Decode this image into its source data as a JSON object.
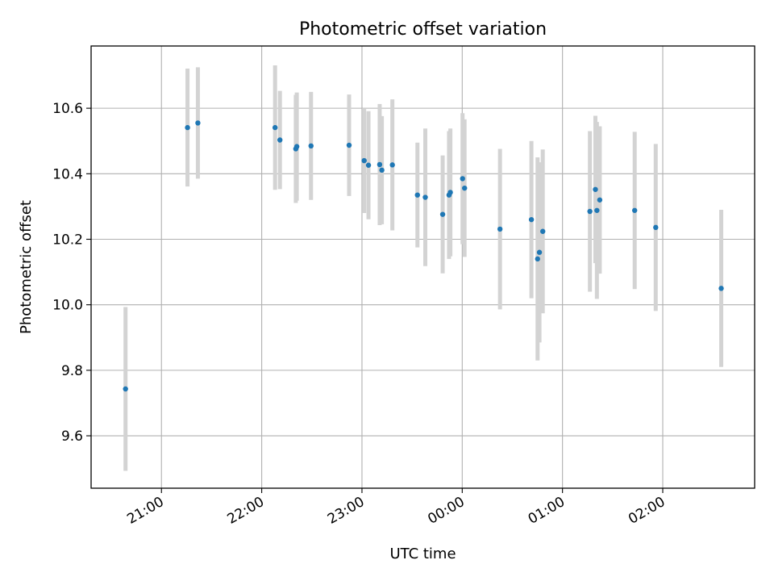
{
  "chart_data": {
    "type": "scatter",
    "title": "Photometric offset variation",
    "xlabel": "UTC time",
    "ylabel": "Photometric offset",
    "grid": true,
    "x_tick_labels": [
      "21:00",
      "22:00",
      "23:00",
      "00:00",
      "01:00",
      "02:00"
    ],
    "x_ticks_minutes": [
      1260,
      1320,
      1380,
      1440,
      1500,
      1560
    ],
    "xlim_minutes": [
      1217.9,
      1615.0
    ],
    "y_ticks": [
      9.6,
      9.8,
      10.0,
      10.2,
      10.4,
      10.6
    ],
    "ylim": [
      9.44,
      10.79
    ],
    "points_time": [
      "20:38",
      "21:15",
      "21:21",
      "22:08",
      "22:11",
      "22:20",
      "22:20",
      "22:29",
      "22:52",
      "23:01",
      "23:03",
      "23:10",
      "23:11",
      "23:18",
      "23:33",
      "23:38",
      "23:48",
      "23:51",
      "23:51",
      "24:00",
      "24:01",
      "24:22",
      "24:41",
      "24:45",
      "24:46",
      "24:48",
      "25:16",
      "25:20",
      "25:21",
      "25:22",
      "25:43",
      "25:56",
      "26:35"
    ],
    "x_minutes": [
      1238.5,
      1275.6,
      1281.8,
      1328.0,
      1330.9,
      1340.4,
      1341.0,
      1349.5,
      1372.3,
      1381.3,
      1383.9,
      1390.6,
      1391.9,
      1398.2,
      1413.2,
      1417.9,
      1428.3,
      1432.1,
      1432.9,
      1440.2,
      1441.4,
      1462.6,
      1481.4,
      1485.1,
      1486.2,
      1488.2,
      1516.4,
      1519.7,
      1520.6,
      1522.3,
      1543.2,
      1555.8,
      1595.0
    ],
    "y": [
      9.743,
      10.541,
      10.555,
      10.541,
      10.503,
      10.476,
      10.483,
      10.485,
      10.487,
      10.44,
      10.426,
      10.428,
      10.411,
      10.427,
      10.335,
      10.328,
      10.276,
      10.335,
      10.343,
      10.385,
      10.356,
      10.231,
      10.26,
      10.14,
      10.16,
      10.224,
      10.285,
      10.352,
      10.288,
      10.32,
      10.288,
      10.236,
      10.05
    ],
    "err": [
      0.25,
      0.18,
      0.17,
      0.19,
      0.15,
      0.165,
      0.165,
      0.165,
      0.155,
      0.16,
      0.165,
      0.185,
      0.165,
      0.2,
      0.16,
      0.21,
      0.18,
      0.195,
      0.195,
      0.2,
      0.21,
      0.245,
      0.24,
      0.31,
      0.275,
      0.25,
      0.245,
      0.225,
      0.27,
      0.225,
      0.24,
      0.255,
      0.24
    ],
    "colors": {
      "point": "#1f77b4",
      "errorbar": "#d3d3d3",
      "grid": "#b0b0b0",
      "axis": "#000000"
    }
  }
}
